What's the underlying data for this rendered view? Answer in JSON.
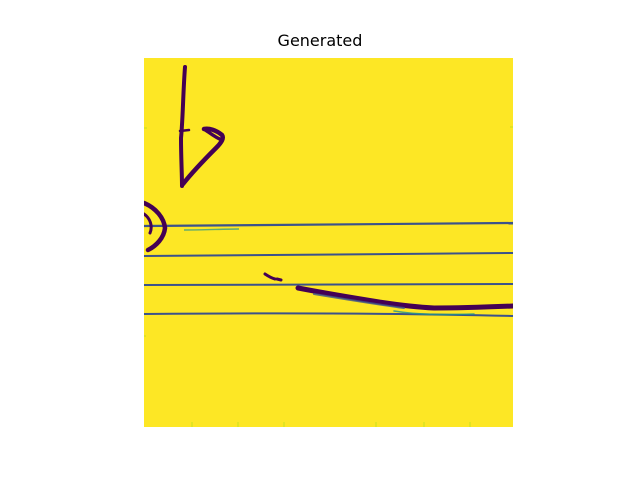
{
  "figure": {
    "title": "Generated",
    "colormap": "viridis",
    "colors": {
      "background": "#fde725",
      "ink_dark": "#440154",
      "ink_line": "#3b528b",
      "ink_faint": "#21918c",
      "ink_light": "#5ec962"
    }
  }
}
